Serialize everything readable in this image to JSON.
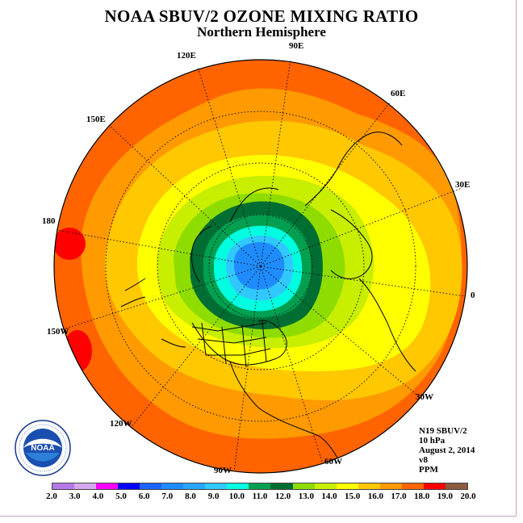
{
  "title": "NOAA SBUV/2 OZONE MIXING RATIO",
  "subtitle": "Northern Hemisphere",
  "info": {
    "instrument": "N19 SBUV/2",
    "level": "10 hPa",
    "date": "August 2, 2014",
    "version": "v8",
    "units": "PPM"
  },
  "longitude_labels": [
    "90E",
    "60E",
    "30E",
    "0",
    "30W",
    "60W",
    "90W",
    "120W",
    "150W",
    "180",
    "150E",
    "120E"
  ],
  "colorbar": {
    "labels": [
      "2.0",
      "3.0",
      "4.0",
      "5.0",
      "6.0",
      "7.0",
      "8.0",
      "9.0",
      "10.0",
      "11.0",
      "12.0",
      "13.0",
      "14.0",
      "15.0",
      "16.0",
      "17.0",
      "18.0",
      "19.0",
      "20.0"
    ],
    "colors": [
      "#b57ae8",
      "#d6a8f0",
      "#ff00ff",
      "#0000ff",
      "#1e64ff",
      "#1e8cff",
      "#28a6ff",
      "#30c8ff",
      "#00ffe0",
      "#00a050",
      "#006e32",
      "#8fdc00",
      "#c8ee00",
      "#ffff00",
      "#ffc800",
      "#ff9a00",
      "#ff6400",
      "#ff0000",
      "#8b5a3c"
    ]
  },
  "logo": {
    "text": "NOAA",
    "ring_text": "NATIONAL OCEANIC AND ATMOSPHERIC ADMINISTRATION · U.S. DEPARTMENT OF COMMERCE"
  }
}
